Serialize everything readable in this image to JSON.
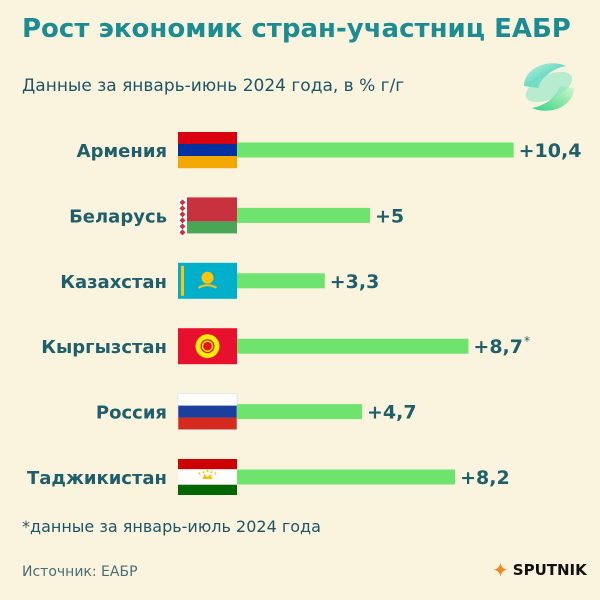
{
  "title": "Рост экономик стран-участниц ЕАБР",
  "subtitle": "Данные за январь-июнь 2024 года, в % г/г",
  "footnote": "*данные за январь-июль 2024 года",
  "source": "Источник: ЕАБР",
  "brand": "SPUTNIK",
  "colors": {
    "bar": "#6ee36e",
    "text": "#1f5f6b",
    "title": "#1c8c93",
    "background": "#faf4de"
  },
  "chart_data": {
    "type": "bar",
    "orientation": "horizontal",
    "categories": [
      "Армения",
      "Беларусь",
      "Казахстан",
      "Кыргызстан",
      "Россия",
      "Таджикистан"
    ],
    "values": [
      10.4,
      5,
      3.3,
      8.7,
      4.7,
      8.2
    ],
    "value_labels": [
      "+10,4",
      "+5",
      "+3,3",
      "+8,7",
      "+4,7",
      "+8,2"
    ],
    "annotations": [
      "",
      "",
      "",
      "*",
      "",
      ""
    ],
    "flags": [
      "armenia-flag",
      "belarus-flag",
      "kazakhstan-flag",
      "kyrgyzstan-flag",
      "russia-flag",
      "tajikistan-flag"
    ]
  }
}
